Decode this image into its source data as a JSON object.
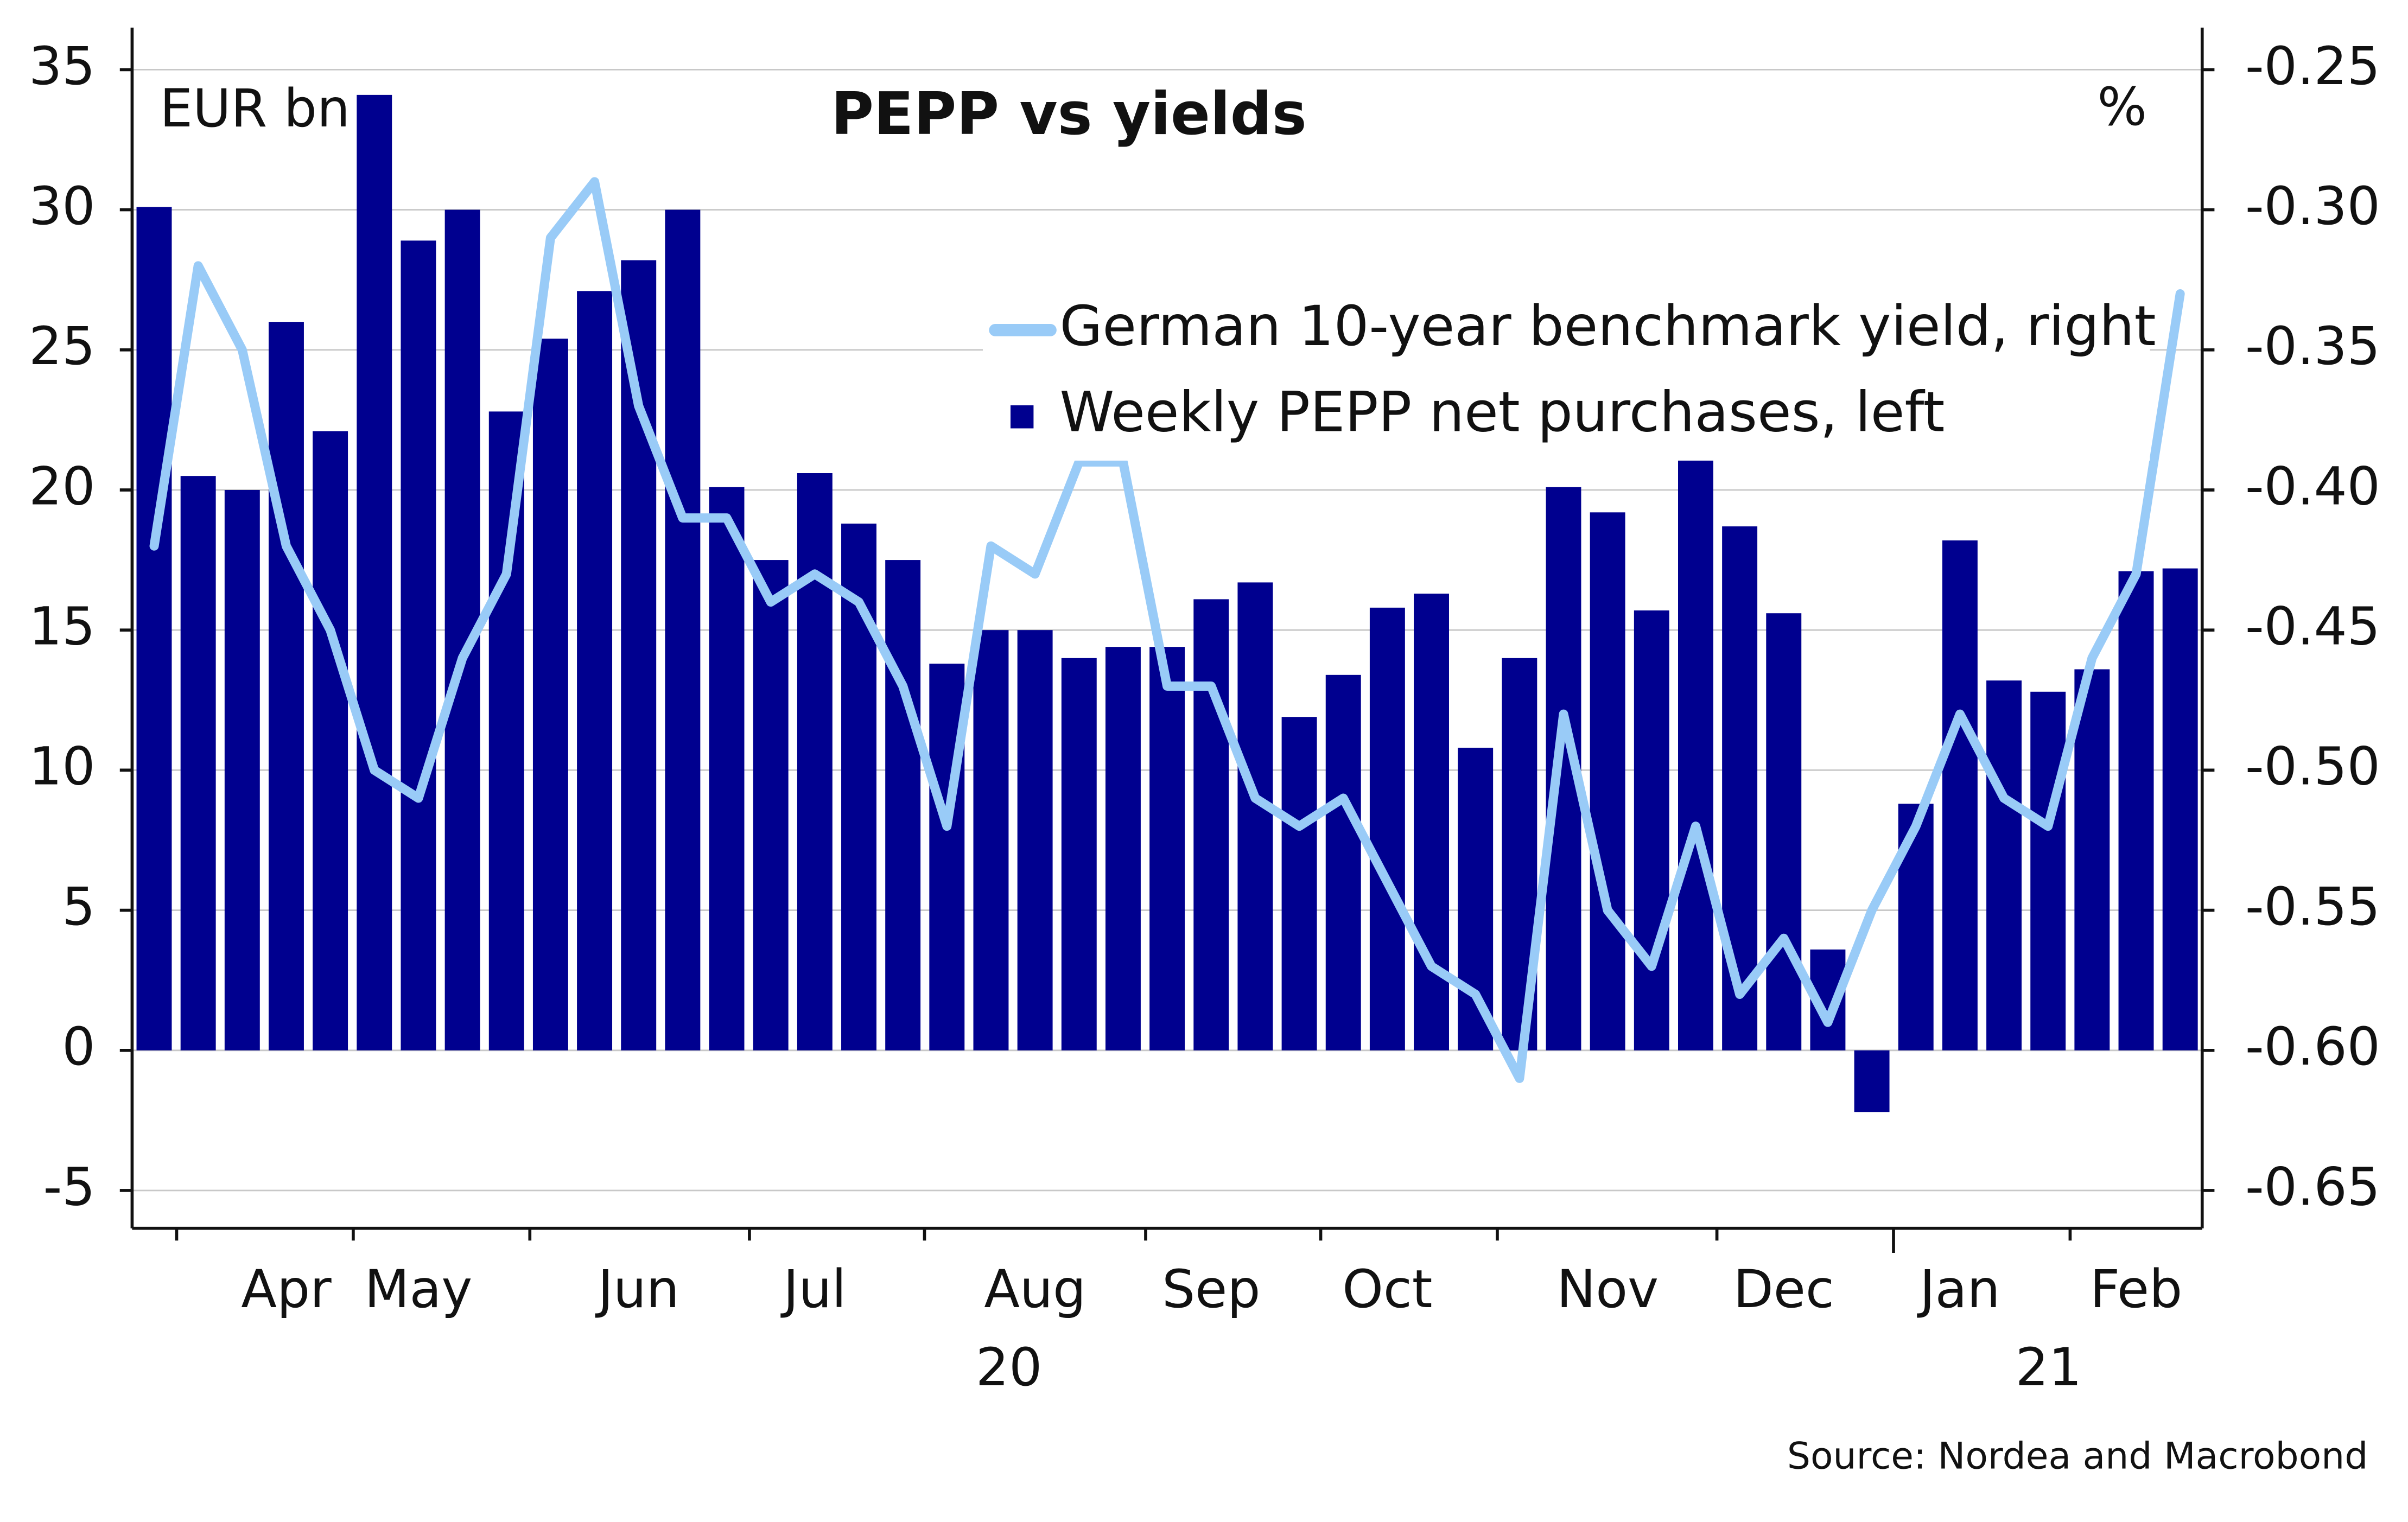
{
  "chart_data": {
    "type": "bar-line",
    "title": "PEPP vs yields",
    "y_label": "EUR bn",
    "y2_label": "%",
    "source": "Source: Nordea and Macrobond",
    "categories": [
      null,
      null,
      null,
      "Apr",
      null,
      null,
      "May",
      null,
      null,
      null,
      null,
      "Jun",
      null,
      null,
      null,
      "Jul",
      null,
      null,
      null,
      null,
      "Aug",
      null,
      null,
      null,
      "Sep",
      null,
      null,
      null,
      "Oct",
      null,
      null,
      null,
      null,
      "Nov",
      null,
      null,
      null,
      "Dec",
      null,
      null,
      null,
      "Jan",
      null,
      null,
      null,
      "Feb",
      null
    ],
    "year_labels": [
      "20",
      "21"
    ],
    "series": [
      {
        "name": "German 10-year benchmark yield, right",
        "color": "#99cbf7",
        "axis": "y2",
        "kind": "line",
        "values": [
          -0.42,
          -0.32,
          -0.35,
          -0.42,
          -0.45,
          -0.5,
          -0.51,
          -0.46,
          -0.43,
          -0.31,
          -0.29,
          -0.37,
          -0.41,
          -0.41,
          -0.44,
          -0.43,
          -0.44,
          -0.47,
          -0.52,
          -0.42,
          -0.43,
          -0.39,
          -0.39,
          -0.47,
          -0.47,
          -0.51,
          -0.52,
          -0.51,
          -0.54,
          -0.57,
          -0.58,
          -0.61,
          -0.48,
          -0.55,
          -0.57,
          -0.52,
          -0.58,
          -0.56,
          -0.59,
          -0.55,
          -0.52,
          -0.48,
          -0.51,
          -0.52,
          -0.46,
          -0.43,
          -0.33
        ]
      },
      {
        "name": "Weekly PEPP net purchases, left",
        "color": "#00008f",
        "axis": "y",
        "kind": "bar",
        "values": [
          30.1,
          20.5,
          20,
          26,
          22.1,
          34.1,
          28.9,
          30,
          22.8,
          25.4,
          27.1,
          28.2,
          30,
          20.1,
          17.5,
          20.6,
          18.8,
          17.5,
          13.8,
          15,
          15,
          14,
          14.4,
          14.4,
          16.1,
          16.7,
          11.9,
          13.4,
          15.8,
          16.3,
          10.8,
          14,
          20.1,
          19.2,
          15.7,
          21.4,
          18.7,
          15.6,
          3.6,
          -2.2,
          8.8,
          18.2,
          13.2,
          12.8,
          13.6,
          17.1,
          17.2
        ]
      }
    ],
    "ylim": [
      -6.35,
      36.5
    ],
    "yticks": [
      35,
      30,
      25,
      20,
      15,
      10,
      5,
      0,
      -5
    ],
    "y2lim": [
      -0.6635,
      -0.235
    ],
    "y2ticks": [
      {
        "value": -0.25,
        "label": "-0.25"
      },
      {
        "value": -0.3,
        "label": "-0.30"
      },
      {
        "value": -0.35,
        "label": "-0.35"
      },
      {
        "value": -0.4,
        "label": "-0.40"
      },
      {
        "value": -0.45,
        "label": "-0.45"
      },
      {
        "value": -0.5,
        "label": "-0.50"
      },
      {
        "value": -0.55,
        "label": "-0.55"
      },
      {
        "value": -0.6,
        "label": "-0.60"
      },
      {
        "value": -0.65,
        "label": "-0.65"
      }
    ],
    "grid": true
  }
}
